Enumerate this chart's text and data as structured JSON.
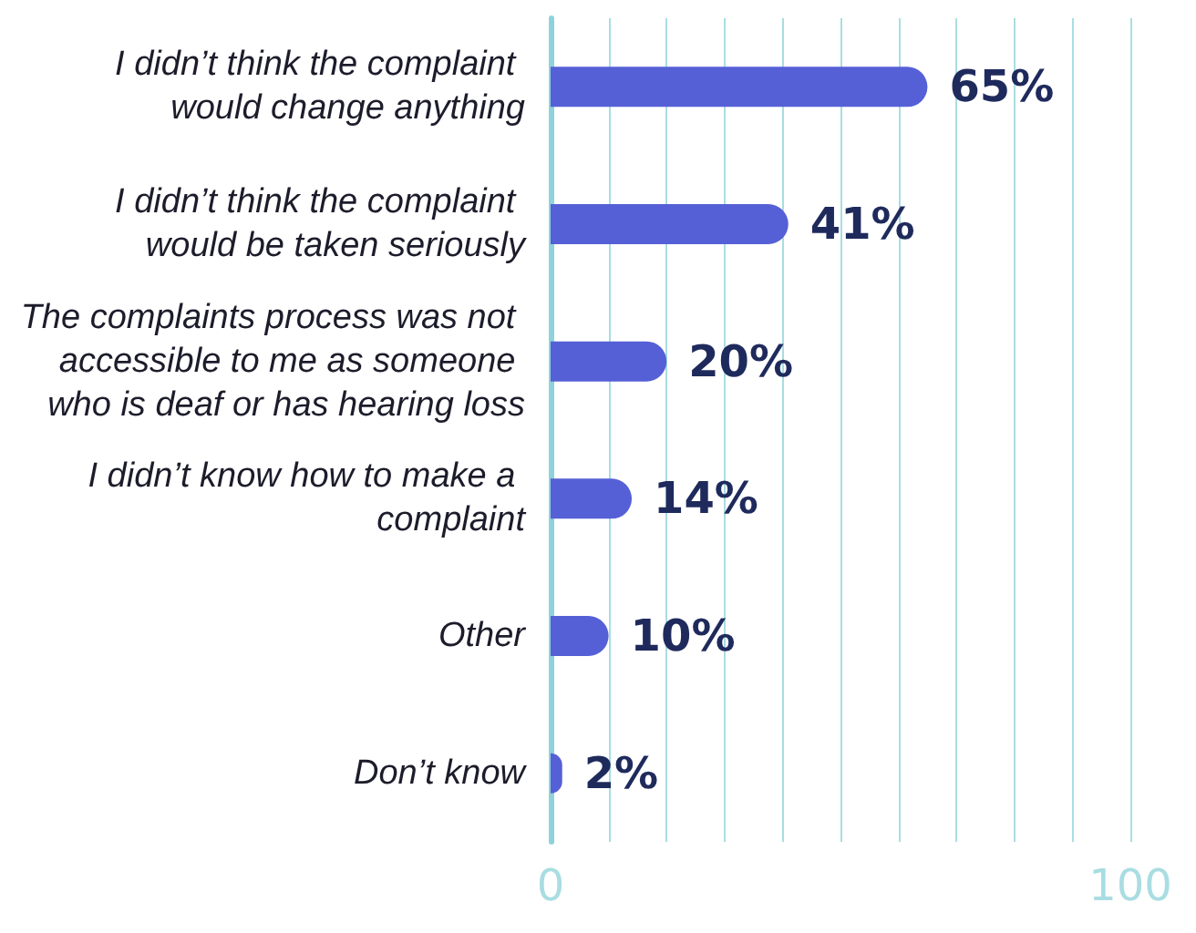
{
  "chart_data": {
    "type": "bar",
    "orientation": "horizontal",
    "categories": [
      "I didn’t think the complaint would change anything",
      "I didn’t think the complaint would be taken seriously",
      "The complaints process was not accessible to me as someone who is deaf or has hearing loss",
      "I didn’t know how to make a complaint",
      "Other",
      "Don’t know"
    ],
    "values": [
      65,
      41,
      20,
      14,
      10,
      2
    ],
    "value_labels": [
      "65%",
      "41%",
      "20%",
      "14%",
      "10%",
      "2%"
    ],
    "color": "#5560d6",
    "xlim": [
      0,
      100
    ],
    "xticks": [
      0,
      {
        "value": 10,
        "label": null
      },
      {
        "value": 20,
        "label": null
      },
      {
        "value": 30,
        "label": null
      },
      {
        "value": 40,
        "label": null
      },
      {
        "value": 50,
        "label": null
      },
      {
        "value": 60,
        "label": null
      },
      {
        "value": 70,
        "label": null
      },
      {
        "value": 80,
        "label": null
      },
      {
        "value": 90,
        "label": null
      },
      100
    ],
    "grid": "x"
  }
}
